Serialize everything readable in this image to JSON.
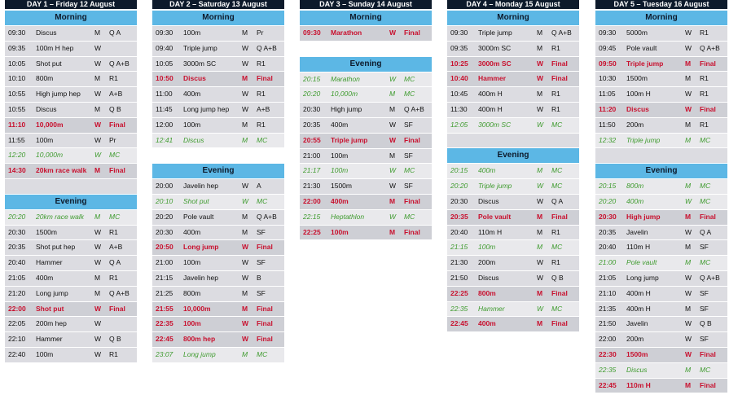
{
  "days": [
    {
      "title": "DAY 1 – Friday 12 August",
      "sections": [
        {
          "title": "Morning",
          "rows": [
            [
              "09:30",
              "Discus",
              "M",
              "Q A"
            ],
            [
              "09:35",
              "100m H hep",
              "W",
              ""
            ],
            [
              "10:05",
              "Shot put",
              "W",
              "Q A+B"
            ],
            [
              "10:10",
              "800m",
              "M",
              "R1"
            ],
            [
              "10:55",
              "High jump hep",
              "W",
              "A+B"
            ],
            [
              "10:55",
              "Discus",
              "M",
              "Q B"
            ],
            [
              "11:10",
              "10,000m",
              "W",
              "Final"
            ],
            [
              "11:55",
              "100m",
              "W",
              "Pr"
            ],
            [
              "12:20",
              "10,000m",
              "W",
              "MC"
            ],
            [
              "14:30",
              "20km race walk",
              "M",
              "Final"
            ]
          ]
        },
        {
          "title": "Evening",
          "rows": [
            [
              "20:20",
              "20km race walk",
              "M",
              "MC"
            ],
            [
              "20:30",
              "1500m",
              "W",
              "R1"
            ],
            [
              "20:35",
              "Shot put hep",
              "W",
              "A+B"
            ],
            [
              "20:40",
              "Hammer",
              "W",
              "Q A"
            ],
            [
              "21:05",
              "400m",
              "M",
              "R1"
            ],
            [
              "21:20",
              "Long jump",
              "M",
              "Q A+B"
            ],
            [
              "22:00",
              "Shot put",
              "W",
              "Final"
            ],
            [
              "22:05",
              "200m hep",
              "W",
              ""
            ],
            [
              "22:10",
              "Hammer",
              "W",
              "Q B"
            ],
            [
              "22:40",
              "100m",
              "W",
              "R1"
            ]
          ]
        }
      ]
    },
    {
      "title": "DAY 2 – Saturday 13 August",
      "sections": [
        {
          "title": "Morning",
          "rows": [
            [
              "09:30",
              "100m",
              "M",
              "Pr"
            ],
            [
              "09:40",
              "Triple jump",
              "W",
              "Q A+B"
            ],
            [
              "10:05",
              "3000m SC",
              "W",
              "R1"
            ],
            [
              "10:50",
              "Discus",
              "M",
              "Final"
            ],
            [
              "11:00",
              "400m",
              "W",
              "R1"
            ],
            [
              "11:45",
              "Long jump hep",
              "W",
              "A+B"
            ],
            [
              "12:00",
              "100m",
              "M",
              "R1"
            ],
            [
              "12:41",
              "Discus",
              "M",
              "MC"
            ]
          ]
        },
        {
          "title": "Evening",
          "rows": [
            [
              "20:00",
              "Javelin hep",
              "W",
              "A"
            ],
            [
              "20:10",
              "Shot put",
              "W",
              "MC"
            ],
            [
              "20:20",
              "Pole vault",
              "M",
              "Q A+B"
            ],
            [
              "20:30",
              "400m",
              "M",
              "SF"
            ],
            [
              "20:50",
              "Long jump",
              "W",
              "Final"
            ],
            [
              "21:00",
              "100m",
              "W",
              "SF"
            ],
            [
              "21:15",
              "Javelin hep",
              "W",
              "B"
            ],
            [
              "21:25",
              "800m",
              "M",
              "SF"
            ],
            [
              "21:55",
              "10,000m",
              "M",
              "Final"
            ],
            [
              "22:35",
              "100m",
              "W",
              "Final"
            ],
            [
              "22:45",
              "800m hep",
              "W",
              "Final"
            ],
            [
              "23:07",
              "Long jump",
              "M",
              "MC"
            ]
          ]
        }
      ]
    },
    {
      "title": "DAY 3 – Sunday 14 August",
      "sections": [
        {
          "title": "Morning",
          "rows": [
            [
              "09:30",
              "Marathon",
              "W",
              "Final"
            ]
          ]
        },
        {
          "title": "Evening",
          "rows": [
            [
              "20:15",
              "Marathon",
              "W",
              "MC"
            ],
            [
              "20:20",
              "10,000m",
              "M",
              "MC"
            ],
            [
              "20:30",
              "High jump",
              "M",
              "Q A+B"
            ],
            [
              "20:35",
              "400m",
              "W",
              "SF"
            ],
            [
              "20:55",
              "Triple jump",
              "W",
              "Final"
            ],
            [
              "21:00",
              "100m",
              "M",
              "SF"
            ],
            [
              "21:17",
              "100m",
              "W",
              "MC"
            ],
            [
              "21:30",
              "1500m",
              "W",
              "SF"
            ],
            [
              "22:00",
              "400m",
              "M",
              "Final"
            ],
            [
              "22:15",
              "Heptathlon",
              "W",
              "MC"
            ],
            [
              "22:25",
              "100m",
              "M",
              "Final"
            ]
          ]
        }
      ]
    },
    {
      "title": "DAY 4 – Monday 15 August",
      "sections": [
        {
          "title": "Morning",
          "rows": [
            [
              "09:30",
              "Triple jump",
              "M",
              "Q A+B"
            ],
            [
              "09:35",
              "3000m SC",
              "M",
              "R1"
            ],
            [
              "10:25",
              "3000m SC",
              "W",
              "Final"
            ],
            [
              "10:40",
              "Hammer",
              "W",
              "Final"
            ],
            [
              "10:45",
              "400m H",
              "M",
              "R1"
            ],
            [
              "11:30",
              "400m H",
              "W",
              "R1"
            ],
            [
              "12:05",
              "3000m SC",
              "W",
              "MC"
            ]
          ]
        },
        {
          "title": "Evening",
          "rows": [
            [
              "20:15",
              "400m",
              "M",
              "MC"
            ],
            [
              "20:20",
              "Triple jump",
              "W",
              "MC"
            ],
            [
              "20:30",
              "Discus",
              "W",
              "Q A"
            ],
            [
              "20:35",
              "Pole vault",
              "M",
              "Final"
            ],
            [
              "20:40",
              "110m H",
              "M",
              "R1"
            ],
            [
              "21:15",
              "100m",
              "M",
              "MC"
            ],
            [
              "21:30",
              "200m",
              "W",
              "R1"
            ],
            [
              "21:50",
              "Discus",
              "W",
              "Q B"
            ],
            [
              "22:25",
              "800m",
              "M",
              "Final"
            ],
            [
              "22:35",
              "Hammer",
              "W",
              "MC"
            ],
            [
              "22:45",
              "400m",
              "M",
              "Final"
            ]
          ]
        }
      ]
    },
    {
      "title": "DAY 5 – Tuesday 16 August",
      "sections": [
        {
          "title": "Morning",
          "rows": [
            [
              "09:30",
              "5000m",
              "W",
              "R1"
            ],
            [
              "09:45",
              "Pole vault",
              "W",
              "Q A+B"
            ],
            [
              "09:50",
              "Triple jump",
              "M",
              "Final"
            ],
            [
              "10:30",
              "1500m",
              "M",
              "R1"
            ],
            [
              "11:05",
              "100m H",
              "W",
              "R1"
            ],
            [
              "11:20",
              "Discus",
              "W",
              "Final"
            ],
            [
              "11:50",
              "200m",
              "M",
              "R1"
            ],
            [
              "12:32",
              "Triple jump",
              "M",
              "MC"
            ]
          ]
        },
        {
          "title": "Evening",
          "rows": [
            [
              "20:15",
              "800m",
              "M",
              "MC"
            ],
            [
              "20:20",
              "400m",
              "W",
              "MC"
            ],
            [
              "20:30",
              "High jump",
              "M",
              "Final"
            ],
            [
              "20:35",
              "Javelin",
              "W",
              "Q A"
            ],
            [
              "20:40",
              "110m H",
              "M",
              "SF"
            ],
            [
              "21:00",
              "Pole vault",
              "M",
              "MC"
            ],
            [
              "21:05",
              "Long jump",
              "W",
              "Q A+B"
            ],
            [
              "21:10",
              "400m H",
              "W",
              "SF"
            ],
            [
              "21:35",
              "400m H",
              "M",
              "SF"
            ],
            [
              "21:50",
              "Javelin",
              "W",
              "Q B"
            ],
            [
              "22:00",
              "200m",
              "W",
              "SF"
            ],
            [
              "22:30",
              "1500m",
              "W",
              "Final"
            ],
            [
              "22:35",
              "Discus",
              "M",
              "MC"
            ],
            [
              "22:45",
              "110m H",
              "M",
              "Final"
            ]
          ]
        }
      ]
    }
  ]
}
